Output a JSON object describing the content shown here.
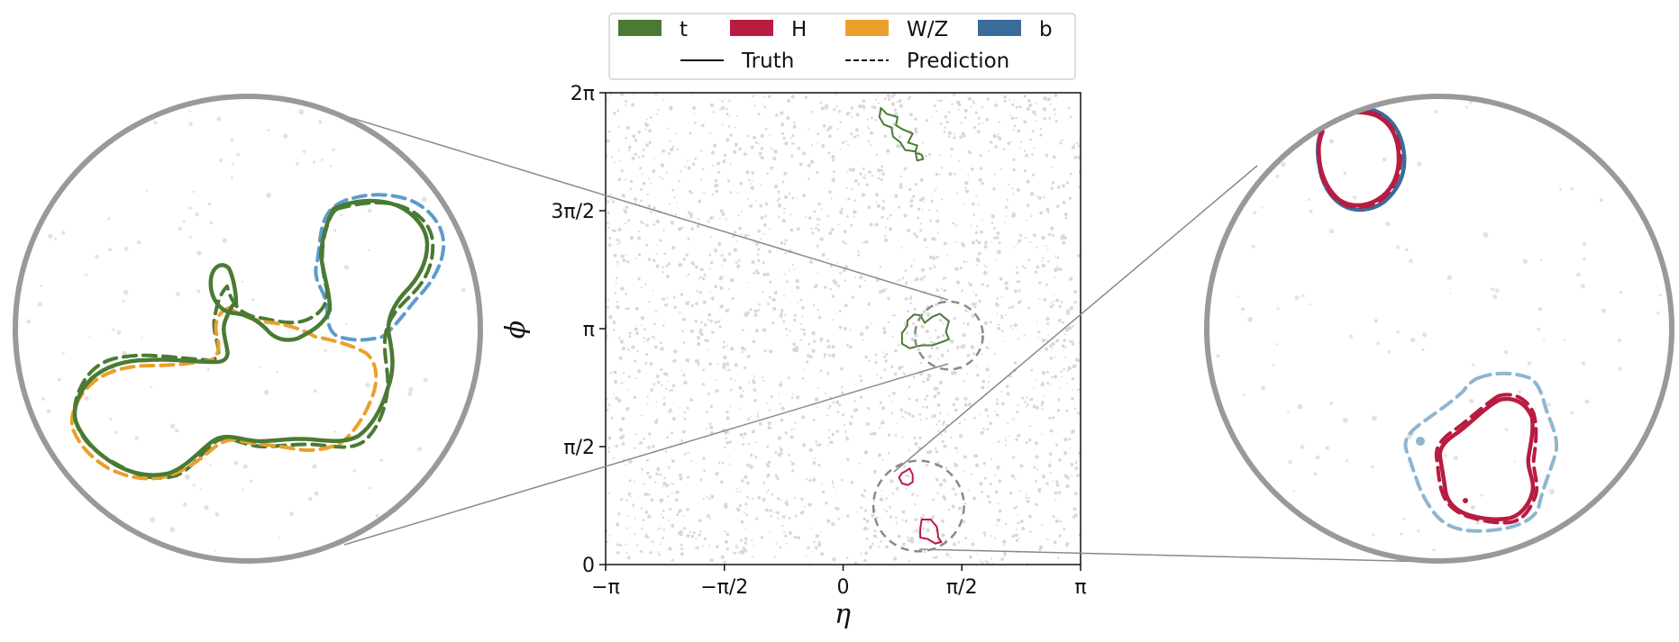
{
  "chart_data": {
    "type": "scatter",
    "title": "",
    "xlabel": "η",
    "ylabel": "ϕ",
    "xlim": [
      -3.1416,
      3.1416
    ],
    "ylim": [
      0,
      6.2832
    ],
    "xticks": [
      {
        "value": -3.1416,
        "label": "−π"
      },
      {
        "value": -1.5708,
        "label": "−π/2"
      },
      {
        "value": 0,
        "label": "0"
      },
      {
        "value": 1.5708,
        "label": "π/2"
      },
      {
        "value": 3.1416,
        "label": "π"
      }
    ],
    "yticks": [
      {
        "value": 0,
        "label": "0"
      },
      {
        "value": 1.5708,
        "label": "π/2"
      },
      {
        "value": 3.1416,
        "label": "π"
      },
      {
        "value": 4.7124,
        "label": "3π/2"
      },
      {
        "value": 6.2832,
        "label": "2π"
      }
    ],
    "grid": false,
    "legend": {
      "placement": "top-center",
      "particles": [
        {
          "label": "t",
          "color": "#4a7a34"
        },
        {
          "label": "H",
          "color": "#b81c41"
        },
        {
          "label": "W/Z",
          "color": "#eba02a"
        },
        {
          "label": "b",
          "color": "#3a6c9a"
        }
      ],
      "styles": [
        {
          "label": "Truth",
          "dash": "solid"
        },
        {
          "label": "Prediction",
          "dash": "dashed"
        }
      ]
    },
    "background_color": "#d8d8d8",
    "zoom_regions": [
      {
        "name": "top-jet",
        "center": [
          1.4,
          3.05
        ],
        "radius": 0.45,
        "side": "left"
      },
      {
        "name": "higgs-region",
        "center": [
          1.0,
          0.78
        ],
        "radius": 0.6,
        "side": "right"
      }
    ],
    "contours": [
      {
        "particle": "t",
        "style": "solid",
        "points": [
          [
            0.5,
            6.08
          ],
          [
            0.58,
            6.0
          ],
          [
            0.72,
            5.96
          ],
          [
            0.7,
            5.85
          ],
          [
            0.78,
            5.8
          ],
          [
            0.92,
            5.74
          ],
          [
            0.86,
            5.62
          ],
          [
            0.98,
            5.58
          ],
          [
            0.96,
            5.5
          ],
          [
            0.82,
            5.52
          ],
          [
            0.76,
            5.62
          ],
          [
            0.66,
            5.7
          ],
          [
            0.64,
            5.82
          ],
          [
            0.54,
            5.86
          ],
          [
            0.48,
            5.96
          ],
          [
            0.5,
            6.08
          ]
        ]
      },
      {
        "particle": "t",
        "style": "solid",
        "points": [
          [
            0.96,
            5.48
          ],
          [
            1.04,
            5.46
          ],
          [
            1.06,
            5.4
          ],
          [
            0.98,
            5.38
          ],
          [
            0.96,
            5.48
          ]
        ]
      },
      {
        "particle": "t",
        "style": "solid",
        "points": [
          [
            0.85,
            3.25
          ],
          [
            0.94,
            3.33
          ],
          [
            1.02,
            3.32
          ],
          [
            1.08,
            3.22
          ],
          [
            1.18,
            3.3
          ],
          [
            1.28,
            3.34
          ],
          [
            1.4,
            3.24
          ],
          [
            1.36,
            3.1
          ],
          [
            1.4,
            3.0
          ],
          [
            1.3,
            2.96
          ],
          [
            1.18,
            2.92
          ],
          [
            1.04,
            2.92
          ],
          [
            0.88,
            2.88
          ],
          [
            0.78,
            2.94
          ],
          [
            0.78,
            3.08
          ],
          [
            0.85,
            3.18
          ],
          [
            0.85,
            3.25
          ]
        ]
      },
      {
        "particle": "H",
        "style": "solid",
        "points": [
          [
            0.82,
            1.24
          ],
          [
            0.88,
            1.28
          ],
          [
            0.92,
            1.2
          ],
          [
            0.92,
            1.1
          ],
          [
            0.86,
            1.06
          ],
          [
            0.78,
            1.08
          ],
          [
            0.74,
            1.16
          ],
          [
            0.78,
            1.22
          ],
          [
            0.82,
            1.24
          ]
        ]
      },
      {
        "particle": "H",
        "style": "solid",
        "points": [
          [
            1.04,
            0.6
          ],
          [
            1.16,
            0.6
          ],
          [
            1.24,
            0.5
          ],
          [
            1.26,
            0.36
          ],
          [
            1.3,
            0.3
          ],
          [
            1.22,
            0.28
          ],
          [
            1.12,
            0.34
          ],
          [
            1.02,
            0.36
          ],
          [
            1.02,
            0.48
          ],
          [
            1.04,
            0.6
          ]
        ]
      }
    ]
  }
}
